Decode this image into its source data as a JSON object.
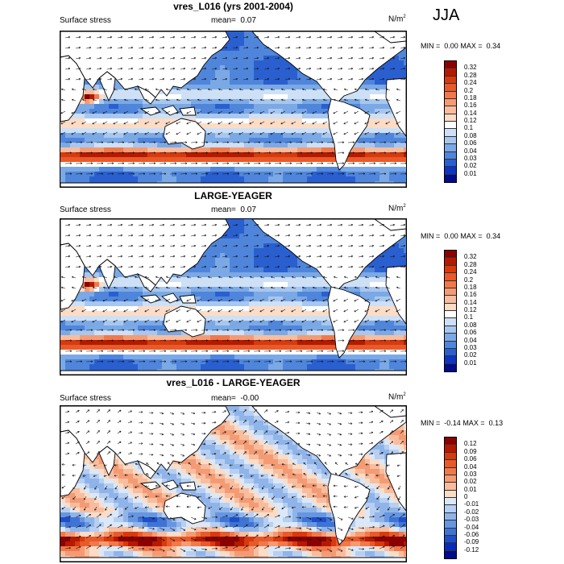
{
  "season": "JJA",
  "colors": {
    "land": "#ffffff",
    "coast": "#000000",
    "arrow": "#1a1a1a"
  },
  "panels": [
    {
      "title": "vres_L016 (yrs 2001-2004)",
      "left_label": "Surface stress",
      "mean_label": "mean=",
      "mean_value": "0.07",
      "units": "N/m",
      "units_sup": "2",
      "min_label": "MIN =",
      "min_value": "0.00",
      "max_label": "MAX =",
      "max_value": "0.34",
      "field": "stress",
      "colorbar": {
        "labels": [
          "0.32",
          "0.28",
          "0.24",
          "0.2",
          "0.18",
          "0.16",
          "0.14",
          "0.12",
          "0.1",
          "0.08",
          "0.06",
          "0.04",
          "0.03",
          "0.02",
          "0.01"
        ],
        "colors": [
          "#8b0000",
          "#b51a00",
          "#d83a0e",
          "#e85a2a",
          "#f0794c",
          "#f49b74",
          "#f8bd9e",
          "#fbdcc6",
          "#ffffff",
          "#cde0f6",
          "#a8c7ef",
          "#7ba9e6",
          "#4f86dc",
          "#2a5fd0",
          "#0d35c2",
          "#000c8a"
        ]
      }
    },
    {
      "title": "LARGE-YEAGER",
      "left_label": "Surface stress",
      "mean_label": "mean=",
      "mean_value": "0.07",
      "units": "N/m",
      "units_sup": "2",
      "min_label": "MIN =",
      "min_value": "0.00",
      "max_label": "MAX =",
      "max_value": "0.34",
      "field": "stress",
      "colorbar": {
        "labels": [
          "0.32",
          "0.28",
          "0.24",
          "0.2",
          "0.18",
          "0.16",
          "0.14",
          "0.12",
          "0.1",
          "0.08",
          "0.06",
          "0.04",
          "0.03",
          "0.02",
          "0.01"
        ],
        "colors": [
          "#8b0000",
          "#b51a00",
          "#d83a0e",
          "#e85a2a",
          "#f0794c",
          "#f49b74",
          "#f8bd9e",
          "#fbdcc6",
          "#ffffff",
          "#cde0f6",
          "#a8c7ef",
          "#7ba9e6",
          "#4f86dc",
          "#2a5fd0",
          "#0d35c2",
          "#000c8a"
        ]
      }
    },
    {
      "title": "vres_L016 - LARGE-YEAGER",
      "left_label": "Surface stress",
      "mean_label": "mean=",
      "mean_value": "-0.00",
      "units": "N/m",
      "units_sup": "2",
      "min_label": "MIN =",
      "min_value": "-0.14",
      "max_label": "MAX =",
      "max_value": "0.13",
      "field": "diff",
      "colorbar": {
        "labels": [
          "0.12",
          "0.09",
          "0.06",
          "0.04",
          "0.03",
          "0.02",
          "0.01",
          "0",
          "-0.01",
          "-0.02",
          "-0.03",
          "-0.04",
          "-0.06",
          "-0.09",
          "-0.12"
        ],
        "colors": [
          "#8b0000",
          "#b51a00",
          "#d83a0e",
          "#e85a2a",
          "#f0794c",
          "#f49b74",
          "#f8bd9e",
          "#fbdcc6",
          "#dbe8f8",
          "#b6cff2",
          "#8fb4ea",
          "#6696e0",
          "#3f74d5",
          "#1e4fc9",
          "#0a2bb8",
          "#000c8a"
        ]
      }
    }
  ]
}
